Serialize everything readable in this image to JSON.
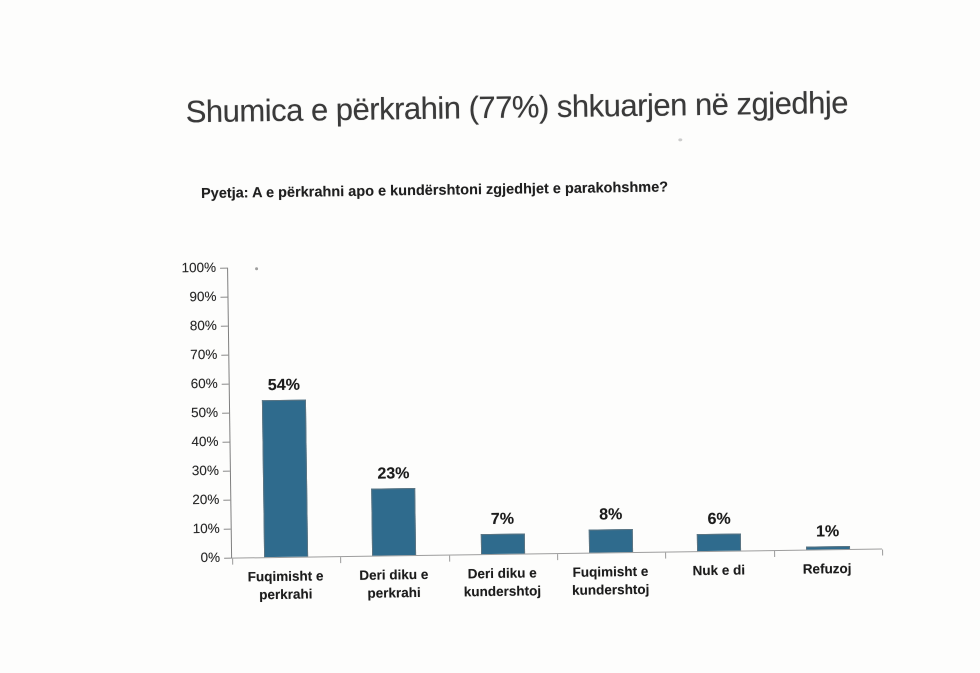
{
  "slide": {
    "title": "Shumica e përkrahin (77%) shkuarjen në zgjedhje",
    "subtitle": "Pyetja: A e përkrahni apo e kundërshtoni zgjedhjet e parakohshme?"
  },
  "chart_data": {
    "type": "bar",
    "title": "Shumica e përkrahin (77%) shkuarjen në zgjedhje",
    "categories": [
      "Fuqimisht e perkrahi",
      "Deri diku e perkrahi",
      "Deri diku e kundershtoj",
      "Fuqimisht e kundershtoj",
      "Nuk e di",
      "Refuzoj"
    ],
    "category_label_lines": [
      [
        "Fuqimisht e",
        "perkrahi"
      ],
      [
        "Deri diku e",
        "perkrahi"
      ],
      [
        "Deri diku e",
        "kundershtoj"
      ],
      [
        "Fuqimisht e",
        "kundershtoj"
      ],
      [
        "Nuk e di"
      ],
      [
        "Refuzoj"
      ]
    ],
    "values": [
      54,
      23,
      7,
      8,
      6,
      1
    ],
    "data_labels": [
      "54%",
      "23%",
      "7%",
      "8%",
      "6%",
      "1%"
    ],
    "y_tick_labels": [
      "100%",
      "90%",
      "80%",
      "70%",
      "60%",
      "50%",
      "40%",
      "30%",
      "20%",
      "10%",
      "0%"
    ],
    "ylim": [
      0,
      100
    ],
    "y_step": 10,
    "xlabel": "",
    "ylabel": "",
    "grid": false,
    "legend": false,
    "bar_color": "#2f6b8d",
    "bar_border_color": "#5b7482",
    "axis_color": "#7f7f7f"
  }
}
